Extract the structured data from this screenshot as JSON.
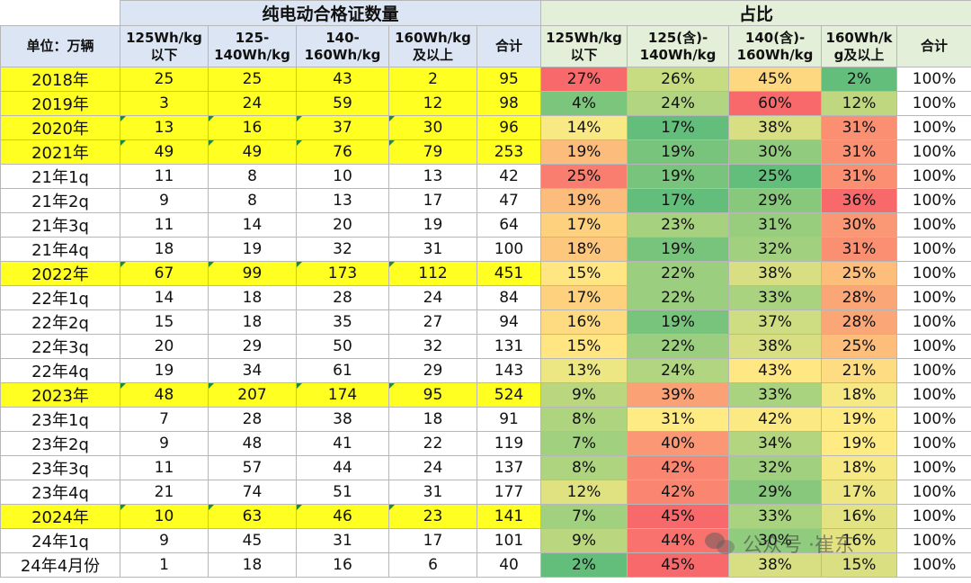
{
  "chart_data": {
    "type": "table",
    "title": "",
    "group_headers": {
      "counts": "纯电动合格证数量",
      "shares": "占比"
    },
    "unit_label": "单位：万辆",
    "count_columns": [
      "125Wh/kg\n以下",
      "125-\n140Wh/kg",
      "140-\n160Wh/kg",
      "160Wh/kg\n及以上",
      "合计"
    ],
    "share_columns": [
      "125Wh/kg\n以下",
      "125(含)-\n140Wh/kg",
      "140(含)-\n160Wh/kg",
      "160Wh/k\ng及以上",
      "合计"
    ],
    "rows": [
      {
        "label": "2018年",
        "year": true,
        "counts": [
          "25",
          "25",
          "43",
          "2",
          "95"
        ],
        "shares": [
          "27%",
          "26%",
          "45%",
          "2%",
          "100%"
        ]
      },
      {
        "label": "2019年",
        "year": true,
        "counts": [
          "3",
          "24",
          "59",
          "12",
          "98"
        ],
        "shares": [
          "4%",
          "24%",
          "60%",
          "12%",
          "100%"
        ]
      },
      {
        "label": "2020年",
        "year": true,
        "counts": [
          "13",
          "16",
          "37",
          "30",
          "96"
        ],
        "shares": [
          "14%",
          "17%",
          "38%",
          "31%",
          "100%"
        ]
      },
      {
        "label": "2021年",
        "year": true,
        "counts": [
          "49",
          "49",
          "76",
          "79",
          "253"
        ],
        "shares": [
          "19%",
          "19%",
          "30%",
          "31%",
          "100%"
        ]
      },
      {
        "label": "21年1q",
        "year": false,
        "counts": [
          "11",
          "8",
          "10",
          "13",
          "42"
        ],
        "shares": [
          "25%",
          "19%",
          "25%",
          "31%",
          "100%"
        ]
      },
      {
        "label": "21年2q",
        "year": false,
        "counts": [
          "9",
          "8",
          "13",
          "17",
          "47"
        ],
        "shares": [
          "19%",
          "17%",
          "29%",
          "36%",
          "100%"
        ]
      },
      {
        "label": "21年3q",
        "year": false,
        "counts": [
          "11",
          "14",
          "20",
          "19",
          "64"
        ],
        "shares": [
          "17%",
          "23%",
          "31%",
          "30%",
          "100%"
        ]
      },
      {
        "label": "21年4q",
        "year": false,
        "counts": [
          "18",
          "19",
          "32",
          "31",
          "100"
        ],
        "shares": [
          "18%",
          "19%",
          "32%",
          "31%",
          "100%"
        ]
      },
      {
        "label": "2022年",
        "year": true,
        "counts": [
          "67",
          "99",
          "173",
          "112",
          "451"
        ],
        "shares": [
          "15%",
          "22%",
          "38%",
          "25%",
          "100%"
        ]
      },
      {
        "label": "22年1q",
        "year": false,
        "counts": [
          "14",
          "18",
          "28",
          "24",
          "84"
        ],
        "shares": [
          "17%",
          "22%",
          "33%",
          "28%",
          "100%"
        ]
      },
      {
        "label": "22年2q",
        "year": false,
        "counts": [
          "15",
          "18",
          "35",
          "27",
          "94"
        ],
        "shares": [
          "16%",
          "19%",
          "37%",
          "28%",
          "100%"
        ]
      },
      {
        "label": "22年3q",
        "year": false,
        "counts": [
          "20",
          "29",
          "50",
          "32",
          "131"
        ],
        "shares": [
          "15%",
          "22%",
          "38%",
          "25%",
          "100%"
        ]
      },
      {
        "label": "22年4q",
        "year": false,
        "counts": [
          "19",
          "34",
          "61",
          "29",
          "143"
        ],
        "shares": [
          "13%",
          "24%",
          "43%",
          "21%",
          "100%"
        ]
      },
      {
        "label": "2023年",
        "year": true,
        "counts": [
          "48",
          "207",
          "174",
          "95",
          "524"
        ],
        "shares": [
          "9%",
          "39%",
          "33%",
          "18%",
          "100%"
        ]
      },
      {
        "label": "23年1q",
        "year": false,
        "counts": [
          "7",
          "28",
          "38",
          "18",
          "91"
        ],
        "shares": [
          "8%",
          "31%",
          "42%",
          "19%",
          "100%"
        ]
      },
      {
        "label": "23年2q",
        "year": false,
        "counts": [
          "9",
          "48",
          "41",
          "22",
          "119"
        ],
        "shares": [
          "7%",
          "40%",
          "34%",
          "19%",
          "100%"
        ]
      },
      {
        "label": "23年3q",
        "year": false,
        "counts": [
          "11",
          "57",
          "44",
          "24",
          "137"
        ],
        "shares": [
          "8%",
          "42%",
          "32%",
          "18%",
          "100%"
        ]
      },
      {
        "label": "23年4q",
        "year": false,
        "counts": [
          "21",
          "74",
          "51",
          "31",
          "177"
        ],
        "shares": [
          "12%",
          "42%",
          "29%",
          "17%",
          "100%"
        ]
      },
      {
        "label": "2024年",
        "year": true,
        "counts": [
          "10",
          "63",
          "46",
          "23",
          "141"
        ],
        "shares": [
          "7%",
          "45%",
          "33%",
          "16%",
          "100%"
        ]
      },
      {
        "label": "24年1q",
        "year": false,
        "counts": [
          "9",
          "45",
          "31",
          "17",
          "101"
        ],
        "shares": [
          "9%",
          "44%",
          "30%",
          "16%",
          "100%"
        ]
      },
      {
        "label": "24年4月份",
        "year": false,
        "counts": [
          "1",
          "18",
          "16",
          "6",
          "40"
        ],
        "shares": [
          "2%",
          "45%",
          "38%",
          "15%",
          "100%"
        ]
      }
    ],
    "share_color_scale": {
      "low": "#63be7b",
      "mid": "#ffeb84",
      "high": "#f8696b"
    },
    "year_row_highlight": "#ffff22"
  },
  "watermark": {
    "text": "公众号 ·崔东"
  }
}
